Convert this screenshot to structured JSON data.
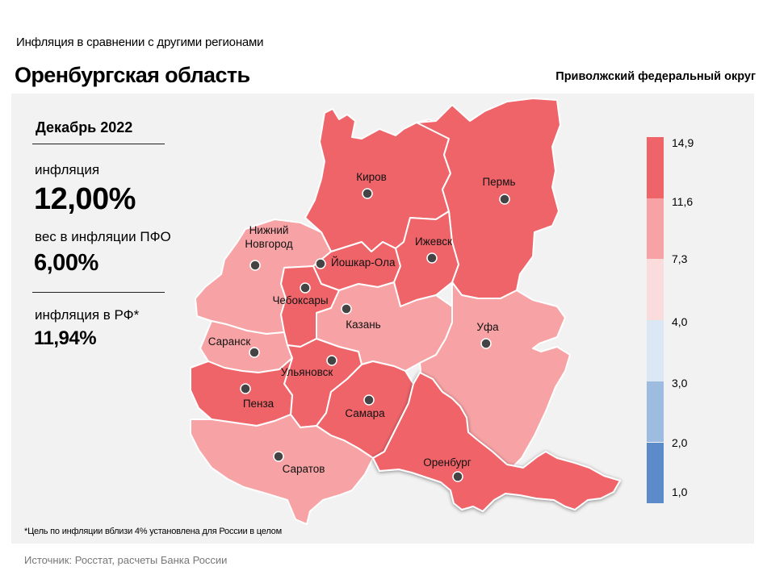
{
  "header": {
    "subtitle": "Инфляция  в сравнении  с другими  регионами",
    "title": "Оренбургская область",
    "district": "Приволжский федеральный округ"
  },
  "stats": {
    "period": "Декабрь 2022",
    "inflation_label": "инфляция",
    "inflation_value": "12,00%",
    "weight_label": "вес в инфляции  ПФО",
    "weight_value": "6,00%",
    "rf_label": "инфляция  в РФ*",
    "rf_value": "11,94%"
  },
  "legend": {
    "ticks": [
      "14,9",
      "11,6",
      "7,3",
      "4,0",
      "3,0",
      "2,0",
      "1,0"
    ],
    "colors": [
      "#ef6469",
      "#f7a3a5",
      "#fadcdd",
      "#dce7f5",
      "#9ebbe0",
      "#5b8bc9"
    ]
  },
  "regions": [
    {
      "id": "kirov",
      "city": "Киров",
      "color": "#ef6469",
      "highlight": false
    },
    {
      "id": "perm",
      "city": "Пермь",
      "color": "#ef6469",
      "highlight": false
    },
    {
      "id": "nizhny",
      "city": "Нижний\nНовгород",
      "city_lines": [
        "Нижний",
        "Новгород"
      ],
      "color": "#f7a3a5",
      "highlight": false
    },
    {
      "id": "yoshkar",
      "city": "Йошкар-Ола",
      "color": "#ef6469",
      "highlight": false
    },
    {
      "id": "izhevsk",
      "city": "Ижевск",
      "color": "#ef6469",
      "highlight": false
    },
    {
      "id": "cheboksary",
      "city": "Чебоксары",
      "color": "#ef6469",
      "highlight": false
    },
    {
      "id": "kazan",
      "city": "Казань",
      "color": "#f7a3a5",
      "highlight": false
    },
    {
      "id": "ufa",
      "city": "Уфа",
      "color": "#f7a3a5",
      "highlight": false
    },
    {
      "id": "saransk",
      "city": "Саранск",
      "color": "#f7a3a5",
      "highlight": false
    },
    {
      "id": "ulyanovsk",
      "city": "Ульяновск",
      "color": "#ef6469",
      "highlight": false
    },
    {
      "id": "penza",
      "city": "Пенза",
      "color": "#ef6469",
      "highlight": false
    },
    {
      "id": "samara",
      "city": "Самара",
      "color": "#ef6469",
      "highlight": false
    },
    {
      "id": "saratov",
      "city": "Саратов",
      "color": "#f7a3a5",
      "highlight": false
    },
    {
      "id": "orenburg",
      "city": "Оренбург",
      "color": "#ef6469",
      "highlight": true
    }
  ],
  "footnote": "*Цель по инфляции вблизи 4% установлена для России в целом",
  "source": "Источник: Росстат, расчеты Банка России"
}
